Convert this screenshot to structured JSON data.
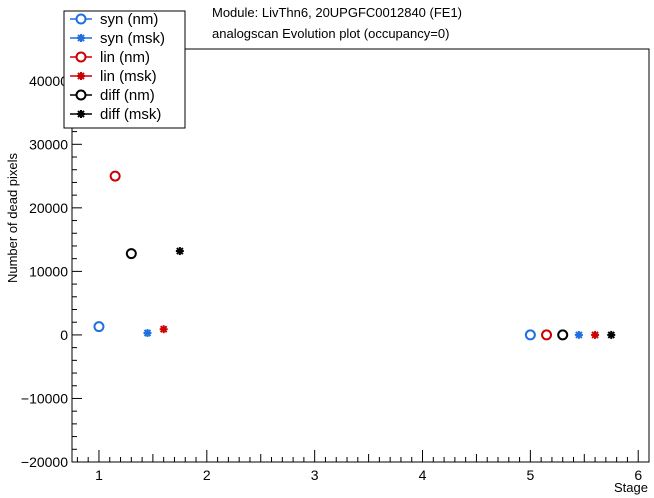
{
  "chart_data": {
    "type": "scatter",
    "title_lines": [
      "Module: LivThn6, 20UPGFC0012840 (FE1)",
      "analogscan Evolution plot (occupancy=0)"
    ],
    "xlabel": "Stage",
    "ylabel": "Number of dead pixels",
    "xlim": [
      0.75,
      6.1
    ],
    "ylim": [
      -20000,
      45000
    ],
    "x_ticks": [
      1,
      2,
      3,
      4,
      5,
      6
    ],
    "y_ticks": [
      -20000,
      -10000,
      0,
      10000,
      20000,
      30000,
      40000
    ],
    "grid": false,
    "legend_position": "top-left",
    "series": [
      {
        "name": "syn (nm)",
        "marker": "open-circle",
        "color": "#1f6fe0",
        "points": [
          {
            "x": 1.0,
            "y": 1300
          },
          {
            "x": 5.0,
            "y": 0
          }
        ]
      },
      {
        "name": "syn (msk)",
        "marker": "star",
        "color": "#1f6fe0",
        "points": [
          {
            "x": 1.45,
            "y": 300
          },
          {
            "x": 5.45,
            "y": 0
          }
        ]
      },
      {
        "name": "lin (nm)",
        "marker": "open-circle",
        "color": "#cc0000",
        "points": [
          {
            "x": 1.15,
            "y": 25000
          },
          {
            "x": 5.15,
            "y": 0
          }
        ]
      },
      {
        "name": "lin (msk)",
        "marker": "star",
        "color": "#cc0000",
        "points": [
          {
            "x": 1.6,
            "y": 900
          },
          {
            "x": 5.6,
            "y": 0
          }
        ]
      },
      {
        "name": "diff (nm)",
        "marker": "open-circle",
        "color": "#000000",
        "points": [
          {
            "x": 1.3,
            "y": 12800
          },
          {
            "x": 5.3,
            "y": 0
          }
        ]
      },
      {
        "name": "diff (msk)",
        "marker": "star",
        "color": "#000000",
        "points": [
          {
            "x": 1.75,
            "y": 13200
          },
          {
            "x": 5.75,
            "y": 0
          }
        ]
      }
    ]
  }
}
